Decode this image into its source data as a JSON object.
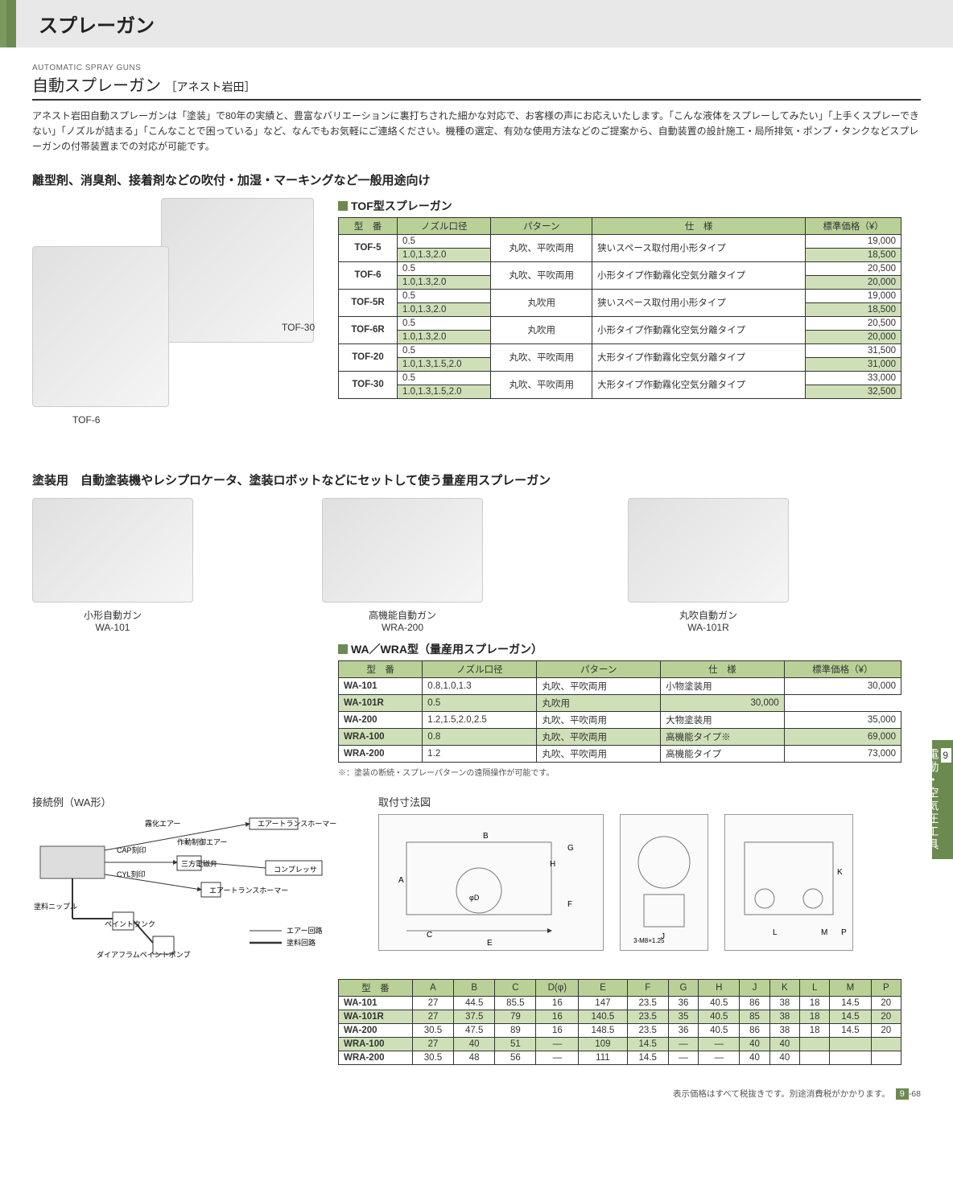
{
  "header": {
    "title": "スプレーガン"
  },
  "subtitle": {
    "en": "AUTOMATIC SPRAY GUNS",
    "jp": "自動スプレーガン",
    "brand": "［アネスト岩田］"
  },
  "intro": "アネスト岩田自動スプレーガンは「塗装」で80年の実績と、豊富なバリエーションに裏打ちされた細かな対応で、お客様の声にお応えいたします。「こんな液体をスプレーしてみたい」「上手くスプレーできない」「ノズルが詰まる」「こんなことで困っている」など、なんでもお気軽にご連絡ください。機種の選定、有効な使用方法などのご提案から、自動装置の設計施工・局所排気・ポンプ・タンクなどスプレーガンの付帯装置までの対応が可能です。",
  "section1": {
    "heading": "離型剤、消臭剤、接着剤などの吹付・加湿・マーキングなど一般用途向け",
    "img_labels": {
      "right": "TOF-30",
      "left": "TOF-6"
    },
    "table_title": "TOF型スプレーガン",
    "columns": [
      "型　番",
      "ノズル口径",
      "パターン",
      "仕　様",
      "標準価格（¥）"
    ],
    "rows": [
      {
        "model": "TOF-5",
        "nozzle": [
          "0.5",
          "1.0,1.3,2.0"
        ],
        "pattern": "丸吹、平吹両用",
        "spec": "狭いスペース取付用小形タイプ",
        "price": [
          "19,000",
          "18,500"
        ]
      },
      {
        "model": "TOF-6",
        "nozzle": [
          "0.5",
          "1.0,1.3,2.0"
        ],
        "pattern": "丸吹、平吹両用",
        "spec": "小形タイプ作動霧化空気分離タイプ",
        "price": [
          "20,500",
          "20,000"
        ]
      },
      {
        "model": "TOF-5R",
        "nozzle": [
          "0.5",
          "1.0,1.3,2.0"
        ],
        "pattern": "丸吹用",
        "spec": "狭いスペース取付用小形タイプ",
        "price": [
          "19,000",
          "18,500"
        ]
      },
      {
        "model": "TOF-6R",
        "nozzle": [
          "0.5",
          "1.0,1.3,2.0"
        ],
        "pattern": "丸吹用",
        "spec": "小形タイプ作動霧化空気分離タイプ",
        "price": [
          "20,500",
          "20,000"
        ]
      },
      {
        "model": "TOF-20",
        "nozzle": [
          "0.5",
          "1.0,1.3,1.5,2.0"
        ],
        "pattern": "丸吹、平吹両用",
        "spec": "大形タイプ作動霧化空気分離タイプ",
        "price": [
          "31,500",
          "31,000"
        ]
      },
      {
        "model": "TOF-30",
        "nozzle": [
          "0.5",
          "1.0,1.3,1.5,2.0"
        ],
        "pattern": "丸吹、平吹両用",
        "spec": "大形タイプ作動霧化空気分離タイプ",
        "price": [
          "33,000",
          "32,500"
        ]
      }
    ]
  },
  "section2": {
    "heading": "塗装用　自動塗装機やレシプロケータ、塗装ロボットなどにセットして使う量産用スプレーガン",
    "images": [
      {
        "caption1": "小形自動ガン",
        "caption2": "WA-101"
      },
      {
        "caption1": "高機能自動ガン",
        "caption2": "WRA-200"
      },
      {
        "caption1": "丸吹自動ガン",
        "caption2": "WA-101R"
      }
    ],
    "table_title": "WA／WRA型（量産用スプレーガン）",
    "columns": [
      "型　番",
      "ノズル口径",
      "パターン",
      "仕　様",
      "標準価格（¥）"
    ],
    "rows": [
      {
        "model": "WA-101",
        "nozzle": "0.8,1.0,1.3",
        "pattern": "丸吹、平吹両用",
        "spec": "小物塗装用",
        "price": "30,000",
        "alt": false,
        "span": true
      },
      {
        "model": "WA-101R",
        "nozzle": "0.5",
        "pattern": "丸吹用",
        "spec": "",
        "price": "30,000",
        "alt": true
      },
      {
        "model": "WA-200",
        "nozzle": "1.2,1.5,2.0,2.5",
        "pattern": "丸吹、平吹両用",
        "spec": "大物塗装用",
        "price": "35,000",
        "alt": false
      },
      {
        "model": "WRA-100",
        "nozzle": "0.8",
        "pattern": "丸吹、平吹両用",
        "spec": "高機能タイプ※",
        "price": "69,000",
        "alt": true
      },
      {
        "model": "WRA-200",
        "nozzle": "1.2",
        "pattern": "丸吹、平吹両用",
        "spec": "高機能タイプ",
        "price": "73,000",
        "alt": false
      }
    ],
    "note": "※：塗装の断続・スプレーパターンの遠隔操作が可能です。"
  },
  "diagrams": {
    "left_title": "接続例（WA形）",
    "right_title": "取付寸法図",
    "labels": {
      "fog_air": "霧化エアー",
      "air_trans": "エアートランスホーマー",
      "control_air": "作動制御エアー",
      "cap": "CAP刻印",
      "valve": "三方電磁弁",
      "compressor": "コンプレッサ",
      "cyl": "CYL刻印",
      "air_trans2": "エアートランスホーマー",
      "paint_nipple": "塗料ニップル",
      "paint_tank": "ペイントタンク",
      "pump": "ダイアフラムペイントポンプ",
      "air_circuit": "エアー回路",
      "paint_circuit": "塗料回路",
      "thread": "3-M8×1.25"
    }
  },
  "dims": {
    "columns": [
      "型　番",
      "A",
      "B",
      "C",
      "D(φ)",
      "E",
      "F",
      "G",
      "H",
      "J",
      "K",
      "L",
      "M",
      "P"
    ],
    "rows": [
      [
        "WA-101",
        "27",
        "44.5",
        "85.5",
        "16",
        "147",
        "23.5",
        "36",
        "40.5",
        "86",
        "38",
        "18",
        "14.5",
        "20"
      ],
      [
        "WA-101R",
        "27",
        "37.5",
        "79",
        "16",
        "140.5",
        "23.5",
        "35",
        "40.5",
        "85",
        "38",
        "18",
        "14.5",
        "20"
      ],
      [
        "WA-200",
        "30.5",
        "47.5",
        "89",
        "16",
        "148.5",
        "23.5",
        "36",
        "40.5",
        "86",
        "38",
        "18",
        "14.5",
        "20"
      ],
      [
        "WRA-100",
        "27",
        "40",
        "51",
        "—",
        "109",
        "14.5",
        "—",
        "—",
        "40",
        "40",
        "",
        "",
        ""
      ],
      [
        "WRA-200",
        "30.5",
        "48",
        "56",
        "—",
        "111",
        "14.5",
        "—",
        "—",
        "40",
        "40",
        "",
        "",
        ""
      ]
    ]
  },
  "sidetab": {
    "num": "9",
    "label": "電動・空気圧工具"
  },
  "footer": {
    "text": "表示価格はすべて税抜きです。別途消費税がかかります。",
    "page_section": "9",
    "page_num": "-68"
  }
}
